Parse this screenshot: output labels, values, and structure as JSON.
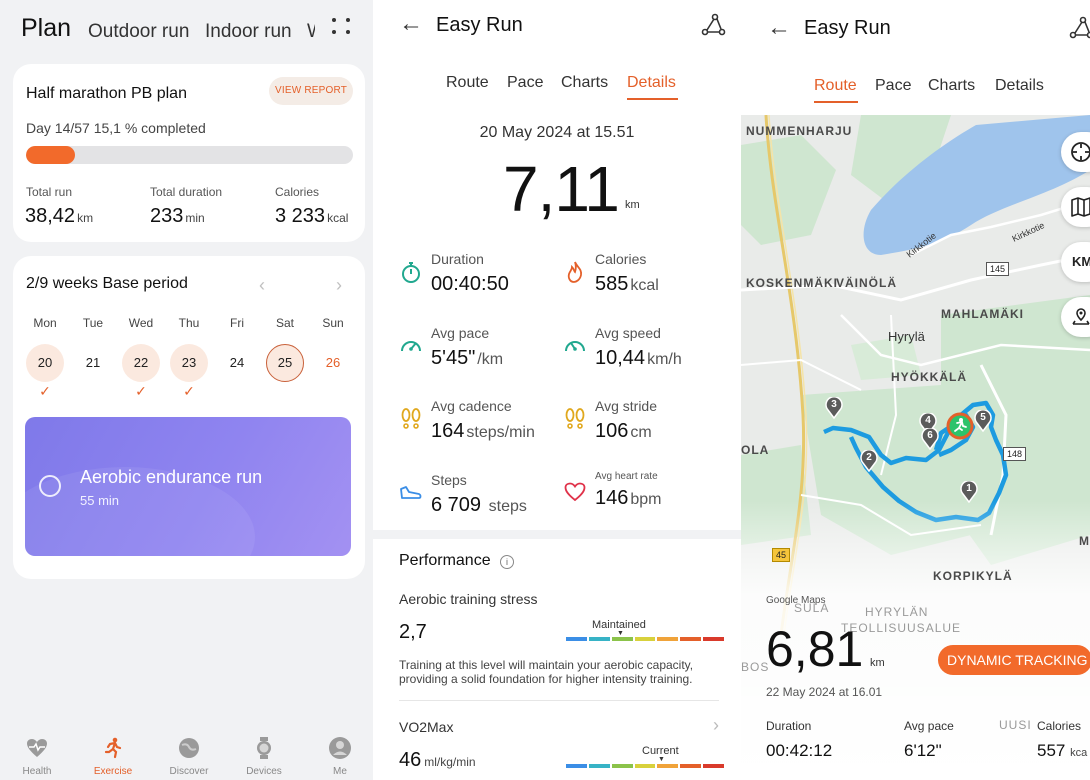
{
  "left": {
    "header": {
      "title": "Plan",
      "tabs": [
        "Outdoor run",
        "Indoor run",
        "W"
      ]
    },
    "plan_card": {
      "title": "Half marathon PB plan",
      "view_report": "VIEW REPORT",
      "progress_text": "Day 14/57 15,1 % completed",
      "progress_percent": 15.1,
      "stats": [
        {
          "label": "Total run",
          "value": "38,42",
          "unit": "km"
        },
        {
          "label": "Total duration",
          "value": "233",
          "unit": "min"
        },
        {
          "label": "Calories",
          "value": "3 233",
          "unit": "kcal"
        }
      ]
    },
    "weeks_card": {
      "title": "2/9 weeks Base period",
      "days": [
        {
          "dow": "Mon",
          "date": "20",
          "state": "done"
        },
        {
          "dow": "Tue",
          "date": "21",
          "state": "rest"
        },
        {
          "dow": "Wed",
          "date": "22",
          "state": "done"
        },
        {
          "dow": "Thu",
          "date": "23",
          "state": "done"
        },
        {
          "dow": "Fri",
          "date": "24",
          "state": "rest"
        },
        {
          "dow": "Sat",
          "date": "25",
          "state": "today"
        },
        {
          "dow": "Sun",
          "date": "26",
          "state": "future"
        }
      ],
      "workout": {
        "title": "Aerobic endurance run",
        "duration": "55 min"
      }
    },
    "bottom_nav": [
      {
        "label": "Health",
        "icon": "heart-pulse-icon"
      },
      {
        "label": "Exercise",
        "icon": "runner-icon",
        "active": true
      },
      {
        "label": "Discover",
        "icon": "planet-icon"
      },
      {
        "label": "Devices",
        "icon": "watch-icon"
      },
      {
        "label": "Me",
        "icon": "person-icon"
      }
    ]
  },
  "middle": {
    "header": {
      "title": "Easy Run",
      "back_icon": "back-arrow-icon",
      "route_icon": "route-share-icon"
    },
    "tabs": [
      "Route",
      "Pace",
      "Charts",
      "Details"
    ],
    "active_tab": "Details",
    "date": "20 May 2024 at 15.51",
    "distance": {
      "value": "7,11",
      "unit": "km"
    },
    "metrics": [
      {
        "label": "Duration",
        "value": "00:40:50",
        "unit": "",
        "icon": "stopwatch-icon"
      },
      {
        "label": "Calories",
        "value": "585",
        "unit": "kcal",
        "icon": "flame-icon"
      },
      {
        "label": "Avg pace",
        "value": "5'45\"",
        "unit": "/km",
        "icon": "speedometer-icon"
      },
      {
        "label": "Avg speed",
        "value": "10,44",
        "unit": "km/h",
        "icon": "speed-gauge-icon"
      },
      {
        "label": "Avg cadence",
        "value": "164",
        "unit": "steps/min",
        "icon": "footprints-icon"
      },
      {
        "label": "Avg stride",
        "value": "106",
        "unit": "cm",
        "icon": "stride-icon"
      },
      {
        "label": "Steps",
        "value": "6 709",
        "unit": "steps",
        "icon": "shoe-icon"
      },
      {
        "label": "Avg heart rate",
        "value": "146",
        "unit": "bpm",
        "icon": "heart-icon"
      }
    ],
    "performance": {
      "title": "Performance",
      "ats_label": "Aerobic training stress",
      "ats_value": "2,7",
      "ats_scale_label": "Maintained",
      "ats_description": "Training at this level will maintain your aerobic capacity, providing a solid foundation for higher intensity training.",
      "vo2_label": "VO2Max",
      "vo2_value": "46",
      "vo2_unit": "ml/kg/min",
      "vo2_scale_label": "Current"
    },
    "colors": {
      "accent": "#e4602a",
      "scale": [
        "#3b8ee6",
        "#37b3c6",
        "#8bc34a",
        "#d8d13c",
        "#f0a33a",
        "#e4602a",
        "#d93a2b"
      ]
    }
  },
  "right": {
    "header": {
      "title": "Easy Run"
    },
    "tabs": [
      "Route",
      "Pace",
      "Charts",
      "Details"
    ],
    "active_tab": "Route",
    "map": {
      "labels": [
        "NUMMENHARJU",
        "KOSKENMÄKI",
        "VÄINÖLÄ",
        "MAHLAMÄKI",
        "Hyrylä",
        "HYÖKKÄLÄ",
        "OLA",
        "KORPIKYLÄ",
        "SULA",
        "HYRYLÄN",
        "TEOLLISUUSALUE",
        "BOS",
        "UUSI",
        "M",
        "Kirkkotie",
        "Kirkkotie"
      ],
      "roads": [
        "145",
        "148",
        "45"
      ],
      "markers": [
        "1",
        "2",
        "3",
        "4",
        "5",
        "6"
      ],
      "side_buttons": [
        "compass-icon",
        "map-layers-icon",
        "km-toggle-icon",
        "location-pin-icon"
      ],
      "km_button": "KM",
      "attribution": "Google Maps"
    },
    "distance": {
      "value": "6,81",
      "unit": "km"
    },
    "dynamic_tracking": "DYNAMIC TRACKING",
    "date": "22 May 2024 at 16.01",
    "stats": [
      {
        "label": "Duration",
        "value": "00:42:12",
        "unit": ""
      },
      {
        "label": "Avg pace",
        "value": "6'12\"",
        "unit": ""
      },
      {
        "label": "Calories",
        "value": "557",
        "unit": "kca"
      }
    ]
  }
}
